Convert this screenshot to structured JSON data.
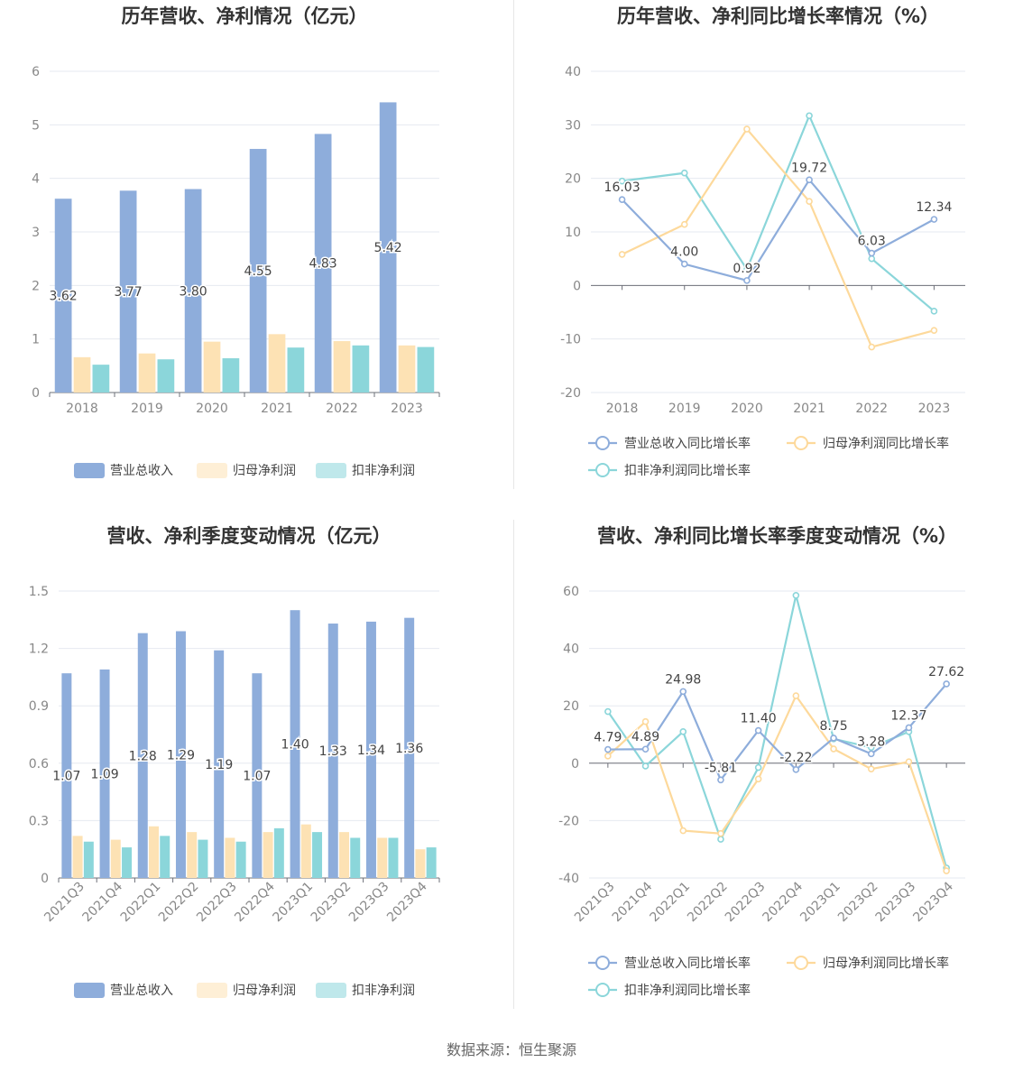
{
  "source": "数据来源：恒生聚源",
  "colors": {
    "revenue": "#8eaddb",
    "netprofit": "#fde2b4",
    "deducted": "#8bd6da",
    "revenue_line": "#8eaddb",
    "netprofit_line": "#fdd99b",
    "deducted_line": "#8bd6da"
  },
  "chart_data": [
    {
      "type": "bar",
      "title": "历年营收、净利情况（亿元）",
      "categories": [
        "2018",
        "2019",
        "2020",
        "2021",
        "2022",
        "2023"
      ],
      "ylim": [
        0,
        6
      ],
      "yticks": [
        0,
        1,
        2,
        3,
        4,
        5,
        6
      ],
      "ytick_labels": [
        "0",
        "1",
        "2",
        "3",
        "4",
        "5",
        "6"
      ],
      "series": [
        {
          "name": "营业总收入",
          "values": [
            3.62,
            3.77,
            3.8,
            4.55,
            4.83,
            5.42
          ],
          "labels": [
            "3.62",
            "3.77",
            "3.80",
            "4.55",
            "4.83",
            "5.42"
          ]
        },
        {
          "name": "归母净利润",
          "values": [
            0.66,
            0.73,
            0.95,
            1.09,
            0.96,
            0.88
          ]
        },
        {
          "name": "扣非净利润",
          "values": [
            0.52,
            0.62,
            0.64,
            0.84,
            0.88,
            0.85
          ]
        }
      ],
      "grid": true,
      "legend": "bottom"
    },
    {
      "type": "line",
      "title": "历年营收、净利同比增长率情况（%）",
      "categories": [
        "2018",
        "2019",
        "2020",
        "2021",
        "2022",
        "2023"
      ],
      "ylim": [
        -20,
        40
      ],
      "yticks": [
        -20,
        -10,
        0,
        10,
        20,
        30,
        40
      ],
      "ytick_labels": [
        "-20",
        "-10",
        "0",
        "10",
        "20",
        "30",
        "40"
      ],
      "series": [
        {
          "name": "营业总收入同比增长率",
          "values": [
            16.03,
            4.0,
            0.92,
            19.72,
            6.03,
            12.34
          ],
          "labels": [
            "16.03",
            "4.00",
            "0.92",
            "19.72",
            "6.03",
            "12.34"
          ]
        },
        {
          "name": "归母净利润同比增长率",
          "values": [
            5.8,
            11.4,
            29.2,
            15.7,
            -11.5,
            -8.4
          ]
        },
        {
          "name": "扣非净利润同比增长率",
          "values": [
            19.5,
            21.0,
            3.0,
            31.7,
            5.0,
            -4.8
          ]
        }
      ],
      "grid": true,
      "legend": "bottom"
    },
    {
      "type": "bar",
      "title": "营收、净利季度变动情况（亿元）",
      "categories": [
        "2021Q3",
        "2021Q4",
        "2022Q1",
        "2022Q2",
        "2022Q3",
        "2022Q4",
        "2023Q1",
        "2023Q2",
        "2023Q3",
        "2023Q4"
      ],
      "ylim": [
        0,
        1.5
      ],
      "yticks": [
        0,
        0.3,
        0.6,
        0.9,
        1.2,
        1.5
      ],
      "ytick_labels": [
        "0",
        "0.3",
        "0.6",
        "0.9",
        "1.2",
        "1.5"
      ],
      "series": [
        {
          "name": "营业总收入",
          "values": [
            1.07,
            1.09,
            1.28,
            1.29,
            1.19,
            1.07,
            1.4,
            1.33,
            1.34,
            1.36
          ],
          "labels": [
            "1.07",
            "1.09",
            "1.28",
            "1.29",
            "1.19",
            "1.07",
            "1.40",
            "1.33",
            "1.34",
            "1.36"
          ]
        },
        {
          "name": "归母净利润",
          "values": [
            0.22,
            0.2,
            0.27,
            0.24,
            0.21,
            0.24,
            0.28,
            0.24,
            0.21,
            0.15
          ]
        },
        {
          "name": "扣非净利润",
          "values": [
            0.19,
            0.16,
            0.22,
            0.2,
            0.19,
            0.26,
            0.24,
            0.21,
            0.21,
            0.16
          ]
        }
      ],
      "grid": true,
      "legend": "bottom"
    },
    {
      "type": "line",
      "title": "营收、净利同比增长率季度变动情况（%）",
      "categories": [
        "2021Q3",
        "2021Q4",
        "2022Q1",
        "2022Q2",
        "2022Q3",
        "2022Q4",
        "2023Q1",
        "2023Q2",
        "2023Q3",
        "2023Q4"
      ],
      "ylim": [
        -40,
        60
      ],
      "yticks": [
        -40,
        -20,
        0,
        20,
        40,
        60
      ],
      "ytick_labels": [
        "-40",
        "-20",
        "0",
        "20",
        "40",
        "60"
      ],
      "series": [
        {
          "name": "营业总收入同比增长率",
          "values": [
            4.79,
            4.89,
            24.98,
            -5.81,
            11.4,
            -2.22,
            8.75,
            3.28,
            12.37,
            27.62
          ],
          "labels": [
            "4.79",
            "4.89",
            "24.98",
            "-5.81",
            "11.40",
            "-2.22",
            "8.75",
            "3.28",
            "12.37",
            "27.62"
          ]
        },
        {
          "name": "归母净利润同比增长率",
          "values": [
            2.5,
            14.5,
            -23.5,
            -24.5,
            -5.5,
            23.5,
            5.0,
            -2.0,
            0.5,
            -37.5
          ]
        },
        {
          "name": "扣非净利润同比增长率",
          "values": [
            18.0,
            -1.0,
            11.0,
            -26.5,
            -1.5,
            58.5,
            8.5,
            5.5,
            11.0,
            -36.5
          ]
        }
      ],
      "grid": true,
      "legend": "bottom"
    }
  ]
}
